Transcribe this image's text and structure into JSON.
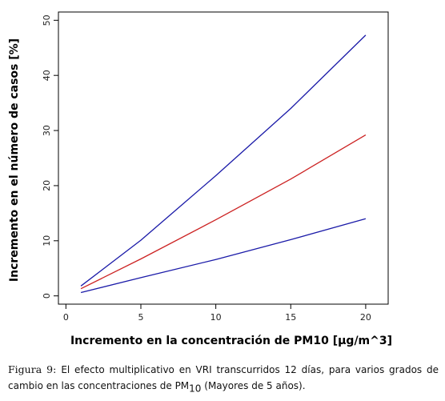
{
  "chart_data": {
    "type": "line",
    "xlabel": "Incremento en la concentración de PM10 [µg/m^3]",
    "ylabel": "Incremento en el número de casos [%]",
    "xlim": [
      -0.5,
      21.5
    ],
    "ylim": [
      -1.5,
      51.5
    ],
    "xticks": [
      0,
      5,
      10,
      15,
      20
    ],
    "yticks": [
      0,
      10,
      20,
      30,
      40,
      50
    ],
    "grid": false,
    "series": [
      {
        "color": "#1a1aa8",
        "x": [
          1,
          5,
          10,
          15,
          20
        ],
        "y": [
          1.8,
          10.1,
          21.8,
          34.0,
          47.3
        ]
      },
      {
        "color": "#cc2222",
        "x": [
          1,
          5,
          10,
          15,
          20
        ],
        "y": [
          1.3,
          6.7,
          13.8,
          21.2,
          29.2
        ]
      },
      {
        "color": "#1a1aa8",
        "x": [
          1,
          5,
          10,
          15,
          20
        ],
        "y": [
          0.6,
          3.3,
          6.6,
          10.2,
          14.0
        ]
      }
    ]
  },
  "caption": {
    "lead": "Figura 9:",
    "text": "El efecto multiplicativo en VRI transcurridos 12 días, para varios grados de cambio en las concentraciones de PM",
    "sub": "10",
    "tail": " (Mayores de 5 años)."
  }
}
